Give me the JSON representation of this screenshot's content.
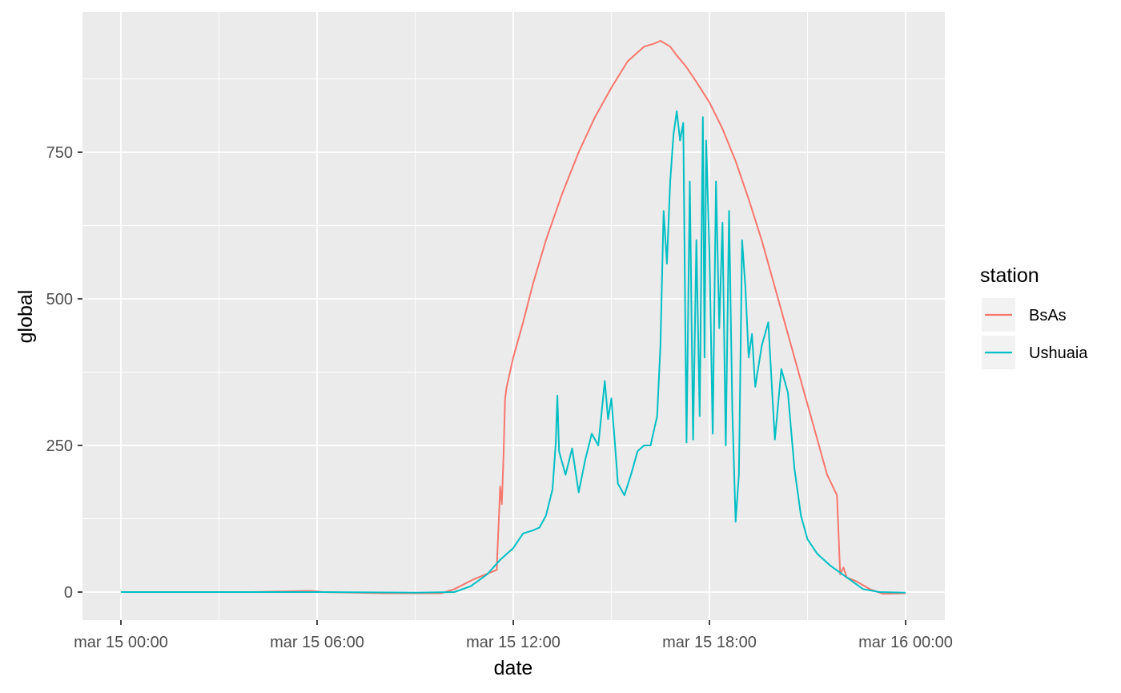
{
  "chart_data": {
    "type": "line",
    "title": "",
    "xlabel": "date",
    "ylabel": "global",
    "x_unit": "hours",
    "xlim": [
      -2,
      42
    ],
    "ylim": [
      -50,
      985
    ],
    "x_ticks": [
      {
        "value": 0,
        "label": "mar 15 00:00"
      },
      {
        "value": 6,
        "label": "mar 15 06:00"
      },
      {
        "value": 12,
        "label": "mar 15 12:00"
      },
      {
        "value": 18,
        "label": "mar 15 18:00"
      },
      {
        "value": 24,
        "label": "mar 16 00:00"
      }
    ],
    "y_ticks": [
      0,
      250,
      500,
      750
    ],
    "grid": true,
    "legend": {
      "title": "station",
      "position": "right"
    },
    "colors": {
      "panel": "#ebebeb",
      "grid": "#ffffff",
      "BsAs": "#f8766d",
      "Ushuaia": "#00bfc4"
    },
    "series": [
      {
        "name": "BsAs",
        "color": "#f8766d",
        "points": [
          [
            0,
            0
          ],
          [
            2,
            0
          ],
          [
            4,
            0
          ],
          [
            5.8,
            2
          ],
          [
            6.2,
            0
          ],
          [
            8,
            -2
          ],
          [
            9.8,
            -2
          ],
          [
            10.2,
            5
          ],
          [
            10.8,
            22
          ],
          [
            11.5,
            38
          ],
          [
            11.5,
            48
          ],
          [
            11.6,
            180
          ],
          [
            11.65,
            150
          ],
          [
            11.7,
            230
          ],
          [
            11.75,
            330
          ],
          [
            11.8,
            350
          ],
          [
            12.0,
            400
          ],
          [
            12.3,
            460
          ],
          [
            12.6,
            525
          ],
          [
            13.0,
            600
          ],
          [
            13.5,
            680
          ],
          [
            14.0,
            750
          ],
          [
            14.5,
            810
          ],
          [
            15.0,
            860
          ],
          [
            15.5,
            905
          ],
          [
            16.0,
            930
          ],
          [
            16.3,
            935
          ],
          [
            16.5,
            940
          ],
          [
            16.8,
            930
          ],
          [
            17.0,
            915
          ],
          [
            17.3,
            895
          ],
          [
            17.6,
            870
          ],
          [
            18.0,
            835
          ],
          [
            18.4,
            790
          ],
          [
            18.8,
            735
          ],
          [
            19.2,
            670
          ],
          [
            19.6,
            600
          ],
          [
            20.0,
            520
          ],
          [
            20.4,
            440
          ],
          [
            20.8,
            360
          ],
          [
            21.2,
            280
          ],
          [
            21.6,
            200
          ],
          [
            21.9,
            165
          ],
          [
            22.0,
            30
          ],
          [
            22.1,
            42
          ],
          [
            22.2,
            25
          ],
          [
            22.5,
            18
          ],
          [
            22.9,
            5
          ],
          [
            23.3,
            -3
          ],
          [
            24.0,
            -2
          ]
        ]
      },
      {
        "name": "Ushuaia",
        "color": "#00bfc4",
        "points": [
          [
            0,
            0
          ],
          [
            3,
            0
          ],
          [
            6,
            0
          ],
          [
            9,
            -1
          ],
          [
            10.2,
            0
          ],
          [
            10.7,
            10
          ],
          [
            11.2,
            30
          ],
          [
            11.6,
            55
          ],
          [
            12.0,
            75
          ],
          [
            12.3,
            100
          ],
          [
            12.6,
            105
          ],
          [
            12.8,
            110
          ],
          [
            13.0,
            130
          ],
          [
            13.2,
            175
          ],
          [
            13.3,
            255
          ],
          [
            13.35,
            335
          ],
          [
            13.4,
            240
          ],
          [
            13.6,
            200
          ],
          [
            13.8,
            245
          ],
          [
            14.0,
            170
          ],
          [
            14.2,
            225
          ],
          [
            14.4,
            270
          ],
          [
            14.6,
            250
          ],
          [
            14.8,
            360
          ],
          [
            14.9,
            295
          ],
          [
            15.0,
            330
          ],
          [
            15.1,
            260
          ],
          [
            15.2,
            185
          ],
          [
            15.4,
            165
          ],
          [
            15.6,
            200
          ],
          [
            15.8,
            240
          ],
          [
            16.0,
            250
          ],
          [
            16.2,
            250
          ],
          [
            16.4,
            300
          ],
          [
            16.5,
            420
          ],
          [
            16.6,
            650
          ],
          [
            16.7,
            560
          ],
          [
            16.8,
            700
          ],
          [
            16.9,
            780
          ],
          [
            17.0,
            820
          ],
          [
            17.1,
            770
          ],
          [
            17.2,
            800
          ],
          [
            17.3,
            255
          ],
          [
            17.4,
            700
          ],
          [
            17.5,
            260
          ],
          [
            17.6,
            600
          ],
          [
            17.7,
            300
          ],
          [
            17.8,
            810
          ],
          [
            17.85,
            400
          ],
          [
            17.9,
            770
          ],
          [
            18.0,
            580
          ],
          [
            18.1,
            270
          ],
          [
            18.2,
            700
          ],
          [
            18.3,
            450
          ],
          [
            18.4,
            630
          ],
          [
            18.5,
            250
          ],
          [
            18.6,
            650
          ],
          [
            18.7,
            310
          ],
          [
            18.8,
            120
          ],
          [
            18.9,
            200
          ],
          [
            19.0,
            600
          ],
          [
            19.1,
            520
          ],
          [
            19.2,
            400
          ],
          [
            19.3,
            440
          ],
          [
            19.4,
            350
          ],
          [
            19.6,
            420
          ],
          [
            19.8,
            460
          ],
          [
            20.0,
            260
          ],
          [
            20.2,
            380
          ],
          [
            20.4,
            340
          ],
          [
            20.6,
            210
          ],
          [
            20.8,
            130
          ],
          [
            21.0,
            90
          ],
          [
            21.3,
            65
          ],
          [
            21.7,
            45
          ],
          [
            22.2,
            25
          ],
          [
            22.7,
            5
          ],
          [
            23.2,
            0
          ],
          [
            24.0,
            -1
          ]
        ]
      }
    ]
  }
}
